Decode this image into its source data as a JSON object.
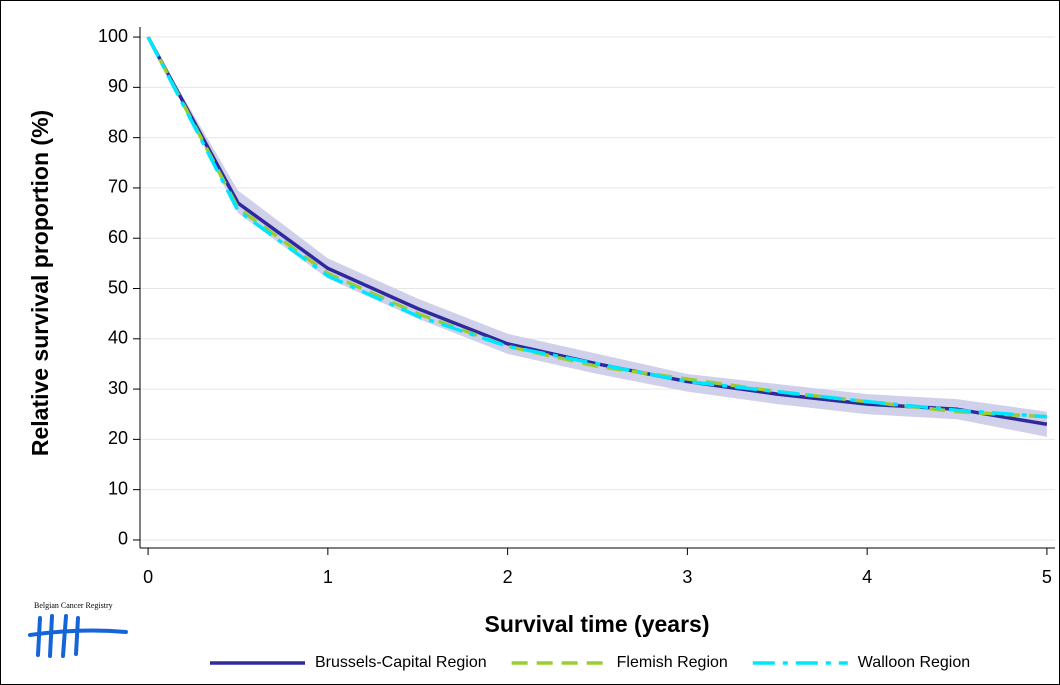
{
  "chart_data": {
    "type": "line",
    "xlabel": "Survival time (years)",
    "ylabel": "Relative survival proportion (%)",
    "logo_text": "Belgian Cancer Registry",
    "x": [
      0,
      0.5,
      1,
      1.5,
      2,
      2.5,
      3,
      3.5,
      4,
      4.5,
      5
    ],
    "series": [
      {
        "name": "Brussels-Capital Region",
        "color": "#2e2a9e",
        "dash": "solid",
        "values": [
          100,
          67,
          54,
          46,
          39,
          35,
          31.5,
          29,
          27,
          26,
          23
        ],
        "band": {
          "color": "#c9c8e8",
          "lower": [
            100,
            65,
            52,
            44,
            37,
            33,
            29.5,
            27,
            25,
            24,
            20.5
          ],
          "upper": [
            100,
            69.5,
            56,
            48,
            41,
            37,
            33,
            31,
            29,
            28,
            25.5
          ]
        }
      },
      {
        "name": "Flemish Region",
        "color": "#9acd32",
        "dash": "dash",
        "values": [
          100,
          66,
          53,
          45,
          38.5,
          34.5,
          32,
          29.5,
          27.5,
          25.5,
          24.5
        ]
      },
      {
        "name": "Walloon Region",
        "color": "#00e5ff",
        "dash": "dashdot",
        "values": [
          100,
          65.5,
          52.5,
          44.5,
          38.5,
          35,
          31.5,
          29.5,
          27.5,
          25.8,
          24.5
        ]
      }
    ],
    "xlim": [
      -0.045,
      5.045
    ],
    "xticks": [
      0,
      1,
      2,
      3,
      4,
      5
    ],
    "ylim": [
      -1.6,
      102
    ],
    "yticks": [
      0,
      10,
      20,
      30,
      40,
      50,
      60,
      70,
      80,
      90,
      100
    ],
    "grid": true
  }
}
